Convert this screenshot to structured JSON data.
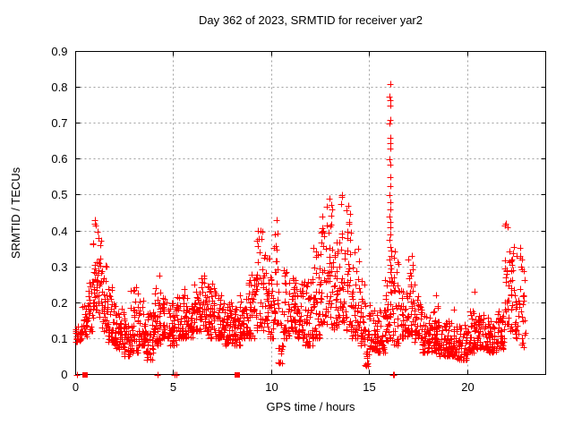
{
  "chart_data": {
    "type": "scatter",
    "title": "Day 362 of 2023, SRMTID for receiver yar2",
    "xlabel": "GPS time / hours",
    "ylabel": "SRMTID / TECUs",
    "xlim": [
      0,
      24
    ],
    "ylim": [
      0,
      0.9
    ],
    "xticks": {
      "values": [
        0,
        5,
        10,
        15,
        20
      ],
      "labels": [
        "0",
        "5",
        "10",
        "15",
        "20"
      ]
    },
    "yticks": {
      "values": [
        0,
        0.1,
        0.2,
        0.3,
        0.4,
        0.5,
        0.6,
        0.7,
        0.8,
        0.9
      ],
      "labels": [
        "0",
        "0.1",
        "0.2",
        "0.3",
        "0.4",
        "0.5",
        "0.6",
        "0.7",
        "0.8",
        "0.9"
      ]
    },
    "grid": true,
    "legend": false,
    "marker": "plus",
    "marker_color": "#ff0000",
    "frame_color": "#000000",
    "grid_color": "#a0a0a0",
    "background": "#ffffff",
    "spike_points": [
      [
        16.05,
        0.81
      ],
      [
        16.04,
        0.775
      ],
      [
        16.06,
        0.765
      ],
      [
        16.05,
        0.75
      ],
      [
        16.07,
        0.71
      ],
      [
        16.04,
        0.7
      ],
      [
        16.06,
        0.66
      ],
      [
        16.08,
        0.645
      ],
      [
        16.05,
        0.63
      ],
      [
        16.04,
        0.6
      ],
      [
        16.07,
        0.585
      ],
      [
        16.05,
        0.55
      ],
      [
        16.06,
        0.525
      ],
      [
        16.04,
        0.5
      ],
      [
        16.08,
        0.48
      ],
      [
        16.05,
        0.46
      ],
      [
        16.03,
        0.44
      ],
      [
        16.07,
        0.425
      ],
      [
        16.05,
        0.41
      ],
      [
        16.08,
        0.39
      ],
      [
        16.04,
        0.375
      ],
      [
        16.06,
        0.355
      ],
      [
        16.1,
        0.345
      ],
      [
        16.12,
        0.33
      ],
      [
        16.03,
        0.32
      ],
      [
        16.08,
        0.305
      ],
      [
        16.13,
        0.295
      ],
      [
        16.05,
        0.285
      ],
      [
        16.1,
        0.27
      ],
      [
        16.02,
        0.26
      ]
    ],
    "outlier_points": [
      [
        18.42,
        0.22
      ],
      [
        19.32,
        0.18
      ],
      [
        20.38,
        0.23
      ],
      [
        17.15,
        0.33
      ],
      [
        10.25,
        0.43
      ],
      [
        13.62,
        0.5
      ],
      [
        12.95,
        0.49
      ],
      [
        13.9,
        0.47
      ],
      [
        1.0,
        0.43
      ],
      [
        9.45,
        0.4
      ],
      [
        21.95,
        0.42
      ],
      [
        12.6,
        0.44
      ]
    ],
    "zero_value_plus_points": [
      [
        0.07,
        0
      ],
      [
        4.2,
        0
      ],
      [
        5.05,
        0
      ],
      [
        5.12,
        0
      ],
      [
        16.2,
        0
      ],
      [
        16.27,
        0
      ]
    ],
    "zero_value_square_points": [
      [
        0.5,
        0
      ],
      [
        8.27,
        0
      ]
    ],
    "density_envelope": {
      "description": "Approximate scatter density bands read from the plot: [t_start_hours, t_end_hours, n_points, y_min_TECU, y_max_TECU]",
      "bins": [
        [
          0.0,
          0.3,
          22,
          0.09,
          0.15
        ],
        [
          0.3,
          0.6,
          24,
          0.1,
          0.2
        ],
        [
          0.6,
          0.9,
          28,
          0.12,
          0.26
        ],
        [
          0.9,
          1.1,
          26,
          0.18,
          0.43
        ],
        [
          1.1,
          1.3,
          22,
          0.16,
          0.4
        ],
        [
          1.3,
          1.6,
          28,
          0.12,
          0.31
        ],
        [
          1.6,
          2.0,
          40,
          0.09,
          0.25
        ],
        [
          2.0,
          2.4,
          40,
          0.07,
          0.21
        ],
        [
          2.4,
          2.8,
          40,
          0.05,
          0.18
        ],
        [
          2.8,
          3.2,
          40,
          0.06,
          0.25
        ],
        [
          3.2,
          3.6,
          40,
          0.08,
          0.21
        ],
        [
          3.6,
          4.0,
          40,
          0.04,
          0.18
        ],
        [
          4.0,
          4.4,
          40,
          0.08,
          0.28
        ],
        [
          4.4,
          4.8,
          40,
          0.1,
          0.23
        ],
        [
          4.8,
          5.2,
          40,
          0.08,
          0.22
        ],
        [
          5.2,
          5.6,
          40,
          0.1,
          0.24
        ],
        [
          5.6,
          6.0,
          40,
          0.1,
          0.22
        ],
        [
          6.0,
          6.4,
          40,
          0.12,
          0.26
        ],
        [
          6.4,
          6.8,
          40,
          0.12,
          0.28
        ],
        [
          6.8,
          7.2,
          40,
          0.1,
          0.26
        ],
        [
          7.2,
          7.6,
          40,
          0.1,
          0.22
        ],
        [
          7.6,
          8.0,
          40,
          0.08,
          0.2
        ],
        [
          8.0,
          8.4,
          40,
          0.08,
          0.19
        ],
        [
          8.4,
          8.8,
          40,
          0.1,
          0.22
        ],
        [
          8.8,
          9.2,
          40,
          0.1,
          0.28
        ],
        [
          9.2,
          9.6,
          40,
          0.12,
          0.4
        ],
        [
          9.6,
          9.9,
          30,
          0.12,
          0.34
        ],
        [
          9.9,
          10.1,
          20,
          0.1,
          0.3
        ],
        [
          10.1,
          10.35,
          24,
          0.14,
          0.43
        ],
        [
          10.35,
          10.6,
          16,
          0.03,
          0.2
        ],
        [
          10.6,
          10.9,
          30,
          0.1,
          0.3
        ],
        [
          10.9,
          11.3,
          40,
          0.12,
          0.28
        ],
        [
          11.3,
          11.7,
          40,
          0.1,
          0.26
        ],
        [
          11.7,
          12.1,
          40,
          0.08,
          0.26
        ],
        [
          12.1,
          12.5,
          40,
          0.1,
          0.36
        ],
        [
          12.5,
          12.8,
          30,
          0.14,
          0.44
        ],
        [
          12.8,
          13.1,
          30,
          0.14,
          0.49
        ],
        [
          13.1,
          13.4,
          30,
          0.12,
          0.38
        ],
        [
          13.4,
          13.8,
          34,
          0.14,
          0.5
        ],
        [
          13.8,
          14.1,
          30,
          0.12,
          0.47
        ],
        [
          14.1,
          14.5,
          36,
          0.1,
          0.36
        ],
        [
          14.5,
          14.8,
          30,
          0.08,
          0.26
        ],
        [
          14.8,
          15.0,
          18,
          0.02,
          0.18
        ],
        [
          15.0,
          15.4,
          40,
          0.07,
          0.2
        ],
        [
          15.4,
          15.8,
          40,
          0.06,
          0.18
        ],
        [
          15.8,
          16.0,
          20,
          0.09,
          0.28
        ],
        [
          16.0,
          16.15,
          12,
          0.1,
          0.26
        ],
        [
          16.15,
          16.5,
          30,
          0.08,
          0.35
        ],
        [
          16.5,
          17.0,
          45,
          0.1,
          0.25
        ],
        [
          17.0,
          17.3,
          26,
          0.11,
          0.33
        ],
        [
          17.3,
          17.7,
          36,
          0.09,
          0.22
        ],
        [
          17.7,
          18.1,
          40,
          0.06,
          0.17
        ],
        [
          18.1,
          18.5,
          40,
          0.06,
          0.19
        ],
        [
          18.5,
          19.0,
          46,
          0.05,
          0.15
        ],
        [
          19.0,
          19.5,
          46,
          0.05,
          0.15
        ],
        [
          19.5,
          20.0,
          46,
          0.04,
          0.14
        ],
        [
          20.0,
          20.5,
          46,
          0.06,
          0.18
        ],
        [
          20.5,
          21.0,
          46,
          0.07,
          0.17
        ],
        [
          21.0,
          21.5,
          46,
          0.06,
          0.16
        ],
        [
          21.5,
          21.9,
          40,
          0.07,
          0.19
        ],
        [
          21.9,
          22.1,
          20,
          0.14,
          0.42
        ],
        [
          22.1,
          22.4,
          26,
          0.12,
          0.38
        ],
        [
          22.4,
          22.7,
          26,
          0.1,
          0.36
        ],
        [
          22.7,
          22.95,
          20,
          0.07,
          0.33
        ]
      ]
    }
  }
}
